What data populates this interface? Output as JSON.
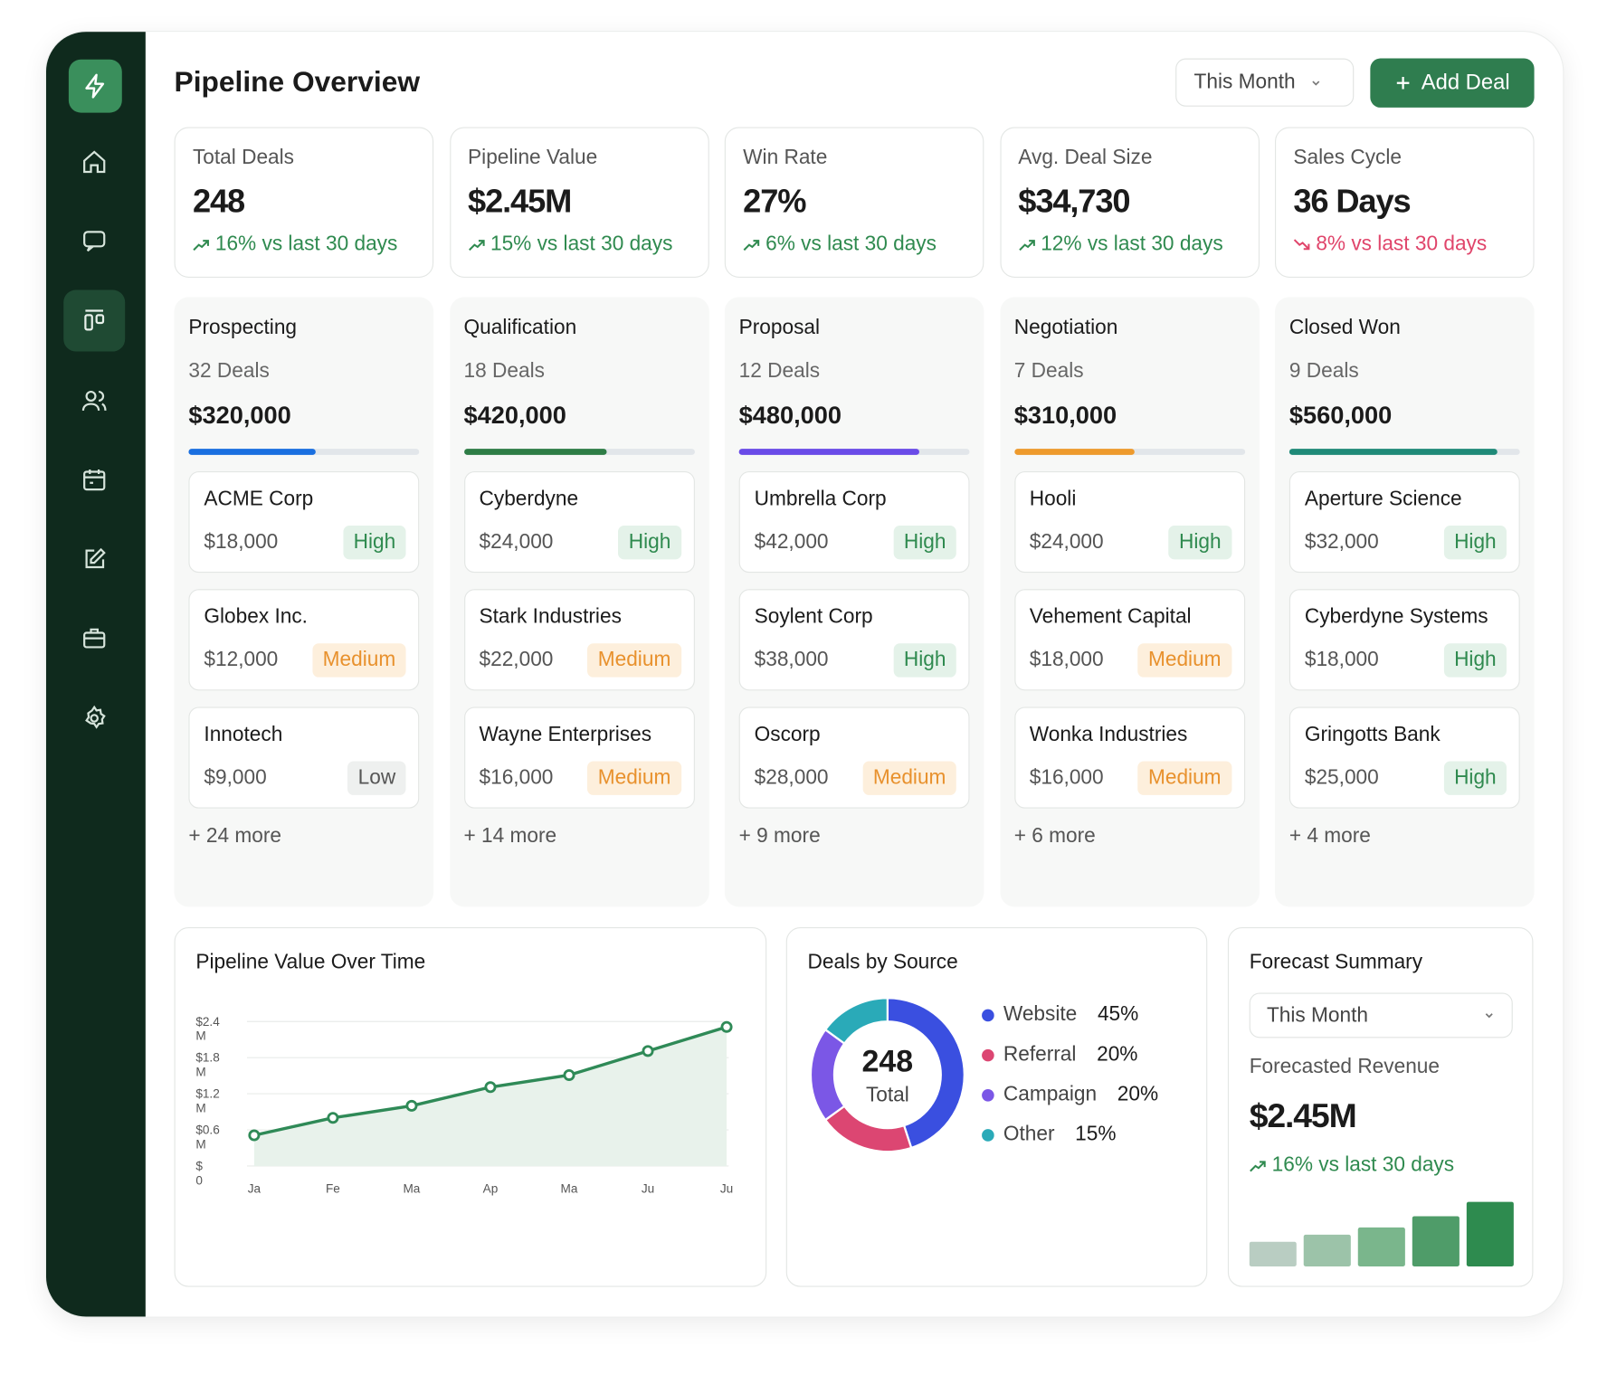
{
  "header": {
    "title": "Pipeline Overview",
    "period": "This Month",
    "add_button": "Add Deal"
  },
  "trend_colors": {
    "up": "#2f8a4f",
    "down": "#e0456b"
  },
  "priority_colors": {
    "High": [
      "#e4f2e9",
      "#2f8a4f"
    ],
    "Medium": [
      "#fdefdc",
      "#e8912d"
    ],
    "Low": [
      "#eef0ef",
      "#555555"
    ]
  },
  "kpis": [
    {
      "label": "Total Deals",
      "value": "248",
      "change": "16% vs last 30 days",
      "trend": "up"
    },
    {
      "label": "Pipeline Value",
      "value": "$2.45M",
      "change": "15% vs last 30 days",
      "trend": "up"
    },
    {
      "label": "Win Rate",
      "value": "27%",
      "change": "6% vs last 30 days",
      "trend": "up"
    },
    {
      "label": "Avg. Deal Size",
      "value": "$34,730",
      "change": "12% vs last 30 days",
      "trend": "up"
    },
    {
      "label": "Sales Cycle",
      "value": "36 Days",
      "change": "8% vs last 30 days",
      "trend": "down"
    }
  ],
  "stages": [
    {
      "name": "Prospecting",
      "count": "32 Deals",
      "value": "$320,000",
      "progress": 55,
      "color": "#1a6fe0",
      "deals": [
        {
          "name": "ACME Corp",
          "amount": "$18,000",
          "priority": "High"
        },
        {
          "name": "Globex Inc.",
          "amount": "$12,000",
          "priority": "Medium"
        },
        {
          "name": "Innotech",
          "amount": "$9,000",
          "priority": "Low"
        }
      ],
      "more": "+ 24 more"
    },
    {
      "name": "Qualification",
      "count": "18 Deals",
      "value": "$420,000",
      "progress": 62,
      "color": "#2e7d46",
      "deals": [
        {
          "name": "Cyberdyne",
          "amount": "$24,000",
          "priority": "High"
        },
        {
          "name": "Stark Industries",
          "amount": "$22,000",
          "priority": "Medium"
        },
        {
          "name": "Wayne Enterprises",
          "amount": "$16,000",
          "priority": "Medium"
        }
      ],
      "more": "+ 14 more"
    },
    {
      "name": "Proposal",
      "count": "12 Deals",
      "value": "$480,000",
      "progress": 78,
      "color": "#6a4be8",
      "deals": [
        {
          "name": "Umbrella Corp",
          "amount": "$42,000",
          "priority": "High"
        },
        {
          "name": "Soylent Corp",
          "amount": "$38,000",
          "priority": "High"
        },
        {
          "name": "Oscorp",
          "amount": "$28,000",
          "priority": "Medium"
        }
      ],
      "more": "+ 9 more"
    },
    {
      "name": "Negotiation",
      "count": "7 Deals",
      "value": "$310,000",
      "progress": 52,
      "color": "#ee9a2c",
      "deals": [
        {
          "name": "Hooli",
          "amount": "$24,000",
          "priority": "High"
        },
        {
          "name": "Vehement Capital",
          "amount": "$18,000",
          "priority": "Medium"
        },
        {
          "name": "Wonka Industries",
          "amount": "$16,000",
          "priority": "Medium"
        }
      ],
      "more": "+ 6 more"
    },
    {
      "name": "Closed Won",
      "count": "9 Deals",
      "value": "$560,000",
      "progress": 90,
      "color": "#1f8a78",
      "deals": [
        {
          "name": "Aperture Science",
          "amount": "$32,000",
          "priority": "High"
        },
        {
          "name": "Cyberdyne Systems",
          "amount": "$18,000",
          "priority": "High"
        },
        {
          "name": "Gringotts Bank",
          "amount": "$25,000",
          "priority": "High"
        }
      ],
      "more": "+ 4 more"
    }
  ],
  "chart_data": [
    {
      "type": "line",
      "title": "Pipeline Value Over Time",
      "categories": [
        "Ja",
        "Fe",
        "Ma",
        "Ap",
        "Ma",
        "Ju",
        "Ju"
      ],
      "values": [
        0.51,
        0.8,
        1.0,
        1.31,
        1.51,
        1.91,
        2.31
      ],
      "color": "#2f8a57",
      "ylim": [
        0,
        2.4
      ],
      "yticks": [
        {
          "value": 0,
          "label": "$ 0"
        },
        {
          "value": 0.6,
          "label": "$0.6 M"
        },
        {
          "value": 1.2,
          "label": "$1.2 M"
        },
        {
          "value": 1.8,
          "label": "$1.8 M"
        },
        {
          "value": 2.4,
          "label": "$2.4 M"
        }
      ],
      "grid": true
    },
    {
      "type": "pie",
      "title": "Deals by Source",
      "center_value": "248",
      "center_label": "Total",
      "series": [
        {
          "name": "Website",
          "color": "#3a4fe0"
        },
        {
          "name": "Referral",
          "color": "#dc4672"
        },
        {
          "name": "Campaign",
          "color": "#7b57e6"
        },
        {
          "name": "Other",
          "color": "#2aaab8"
        }
      ],
      "values": [
        45,
        20,
        20,
        15
      ],
      "value_labels": [
        "45%",
        "20%",
        "20%",
        "15%"
      ]
    },
    {
      "type": "bar",
      "values": [
        24,
        31,
        38,
        49,
        63
      ],
      "colors": [
        "#b9cdc2",
        "#9cc3a9",
        "#7ab68c",
        "#4f9c69",
        "#2e8b4f"
      ]
    }
  ],
  "forecast": {
    "title": "Forecast Summary",
    "period": "This Month",
    "label": "Forecasted Revenue",
    "value": "$2.45M",
    "change": "16% vs last 30 days",
    "trend": "up"
  }
}
